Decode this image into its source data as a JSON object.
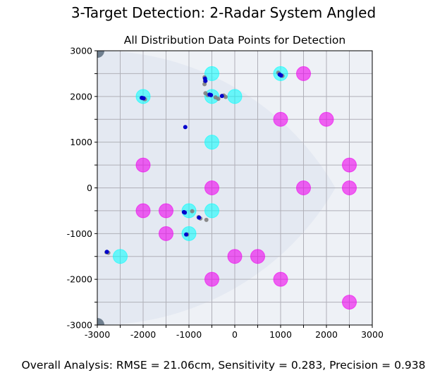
{
  "figure": {
    "suptitle": "3-Target Detection: 2-Radar System Angled",
    "footer": "Overall Analysis: RMSE = 21.06cm, Sensitivity = 0.283, Precision = 0.938"
  },
  "chart_data": {
    "type": "scatter",
    "title": "All Distribution Data Points for Detection",
    "xlabel": "",
    "ylabel": "",
    "xlim": [
      -3000,
      3000
    ],
    "ylim": [
      -3000,
      3000
    ],
    "grid": true,
    "aspect": "equal",
    "x_ticks": [
      -3000,
      -2500,
      -2000,
      -1500,
      -1000,
      -500,
      0,
      500,
      1000,
      1500,
      2000,
      2500,
      3000
    ],
    "x_tick_labels": [
      "-3000",
      "",
      "-2000",
      "",
      "-1000",
      "",
      "0",
      "",
      "1000",
      "",
      "2000",
      "",
      "3000"
    ],
    "y_ticks": [
      -3000,
      -2500,
      -2000,
      -1500,
      -1000,
      -500,
      0,
      500,
      1000,
      1500,
      2000,
      2500,
      3000
    ],
    "y_tick_labels": [
      "-3000",
      "",
      "-2000",
      "",
      "-1000",
      "",
      "0",
      "",
      "1000",
      "",
      "2000",
      "",
      "3000"
    ],
    "colors": {
      "detected_target": "#00FFFF",
      "missed_target": "#EE00EE",
      "detection": "#0000CC",
      "distribution": "#808080",
      "radar": "#708090",
      "coverage_outer": "#EEF1F6",
      "coverage_inner": "#E4E9F2",
      "grid": "#B0B0B8"
    },
    "radars": [
      {
        "x": -3000,
        "y": 3000
      },
      {
        "x": -3000,
        "y": -3000
      }
    ],
    "detected_targets": [
      {
        "x": -500,
        "y": 2500
      },
      {
        "x": 1000,
        "y": 2500
      },
      {
        "x": -2000,
        "y": 2000
      },
      {
        "x": -500,
        "y": 2000
      },
      {
        "x": 0,
        "y": 2000
      },
      {
        "x": -500,
        "y": 1000
      },
      {
        "x": -1000,
        "y": -500
      },
      {
        "x": -500,
        "y": -500
      },
      {
        "x": -1000,
        "y": -1000
      },
      {
        "x": -2500,
        "y": -1500
      }
    ],
    "missed_targets": [
      {
        "x": 1500,
        "y": 2500
      },
      {
        "x": 1000,
        "y": 1500
      },
      {
        "x": 2000,
        "y": 1500
      },
      {
        "x": -2000,
        "y": 500
      },
      {
        "x": 2500,
        "y": 500
      },
      {
        "x": -500,
        "y": 0
      },
      {
        "x": 1500,
        "y": 0
      },
      {
        "x": 2500,
        "y": 0
      },
      {
        "x": -2000,
        "y": -500
      },
      {
        "x": -1500,
        "y": -500
      },
      {
        "x": -1500,
        "y": -1000
      },
      {
        "x": 0,
        "y": -1500
      },
      {
        "x": 500,
        "y": -1500
      },
      {
        "x": -500,
        "y": -2000
      },
      {
        "x": 1000,
        "y": -2000
      },
      {
        "x": 2500,
        "y": -2500
      }
    ],
    "distribution_points": [
      {
        "x": -660,
        "y": 2420
      },
      {
        "x": -650,
        "y": 2330
      },
      {
        "x": -660,
        "y": 2270
      },
      {
        "x": 950,
        "y": 2520
      },
      {
        "x": 1040,
        "y": 2450
      },
      {
        "x": -2010,
        "y": 1960
      },
      {
        "x": -1960,
        "y": 1940
      },
      {
        "x": -640,
        "y": 2070
      },
      {
        "x": -590,
        "y": 2030
      },
      {
        "x": -420,
        "y": 1980
      },
      {
        "x": -360,
        "y": 1950
      },
      {
        "x": -240,
        "y": 2020
      },
      {
        "x": -200,
        "y": 1990
      },
      {
        "x": -930,
        "y": -510
      },
      {
        "x": -790,
        "y": -640
      },
      {
        "x": -750,
        "y": -670
      },
      {
        "x": -620,
        "y": -700
      },
      {
        "x": -1040,
        "y": -1020
      },
      {
        "x": -2800,
        "y": -1410
      },
      {
        "x": -2760,
        "y": -1420
      }
    ],
    "detections": [
      {
        "x": -650,
        "y": 2390
      },
      {
        "x": -640,
        "y": 2340
      },
      {
        "x": 980,
        "y": 2480
      },
      {
        "x": 1010,
        "y": 2460
      },
      {
        "x": -2030,
        "y": 1970
      },
      {
        "x": -1990,
        "y": 1960
      },
      {
        "x": -550,
        "y": 2040
      },
      {
        "x": -520,
        "y": 2030
      },
      {
        "x": -280,
        "y": 2010
      },
      {
        "x": -1080,
        "y": 1330
      },
      {
        "x": -1110,
        "y": -530
      },
      {
        "x": -1090,
        "y": -540
      },
      {
        "x": -780,
        "y": -650
      },
      {
        "x": -1060,
        "y": -1020
      },
      {
        "x": -2790,
        "y": -1400
      }
    ]
  }
}
